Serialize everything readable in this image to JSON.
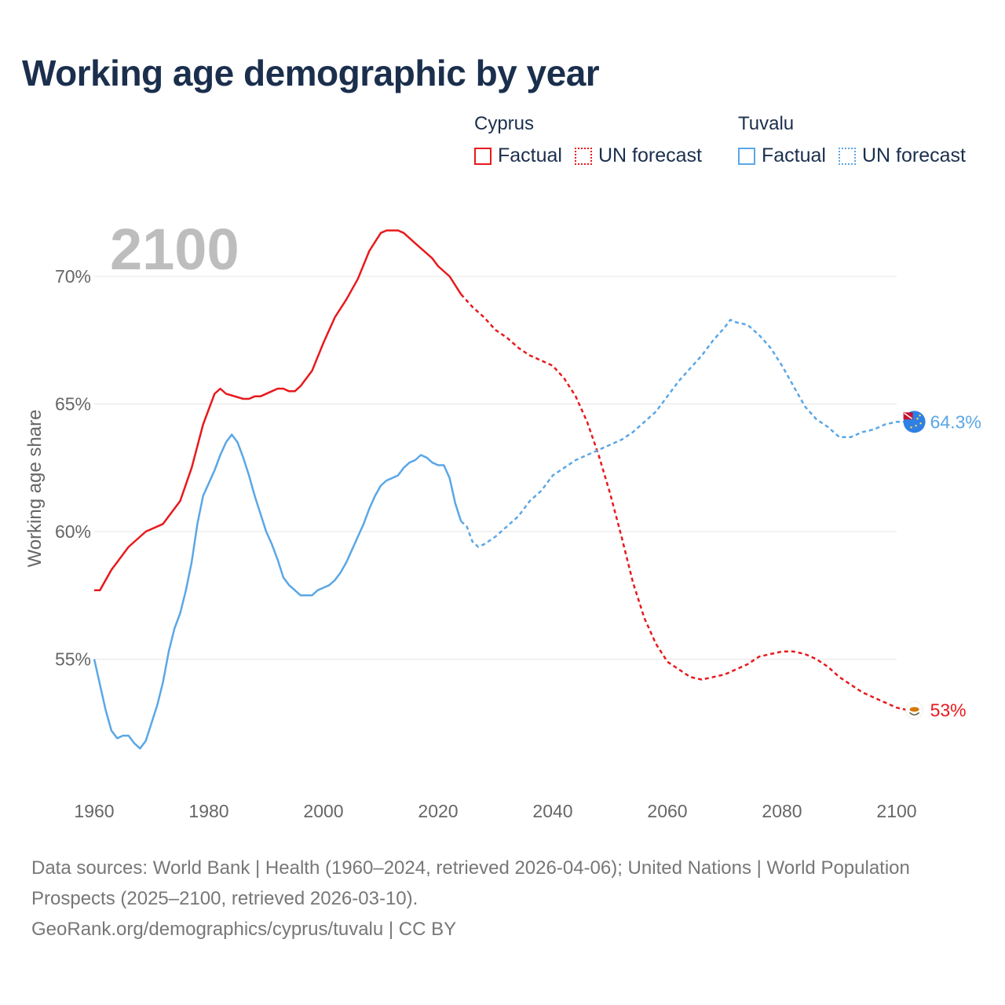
{
  "title": "Working age demographic by year",
  "year_label": "2100",
  "legend": {
    "groups": [
      {
        "name": "Cyprus",
        "factual_label": "Factual",
        "forecast_label": "UN forecast",
        "color": "#e8191c"
      },
      {
        "name": "Tuvalu",
        "factual_label": "Factual",
        "forecast_label": "UN forecast",
        "color": "#5aa7e6"
      }
    ]
  },
  "footer": {
    "sources": "Data sources: World Bank | Health (1960–2024, retrieved 2026-04-06); United Nations | World Population Prospects (2025–2100, retrieved 2026-03-10).",
    "url": "GeoRank.org/demographics/cyprus/tuvalu | CC BY"
  },
  "chart_data": {
    "type": "line",
    "title": "Working age demographic by year",
    "xlabel": "",
    "ylabel": "Working age share",
    "xlim": [
      1960,
      2100
    ],
    "ylim": [
      50,
      72
    ],
    "x_ticks": [
      1960,
      1980,
      2000,
      2020,
      2040,
      2060,
      2080,
      2100
    ],
    "y_ticks": [
      55,
      60,
      65,
      70
    ],
    "y_tick_labels": [
      "55%",
      "60%",
      "65%",
      "70%"
    ],
    "grid": true,
    "factual_end_year": 2024,
    "series": [
      {
        "name": "Cyprus",
        "color": "#e8191c",
        "end_label": "53%",
        "points": [
          [
            1960,
            57.7
          ],
          [
            1961,
            57.7
          ],
          [
            1963,
            58.5
          ],
          [
            1966,
            59.4
          ],
          [
            1969,
            60.0
          ],
          [
            1972,
            60.3
          ],
          [
            1975,
            61.2
          ],
          [
            1977,
            62.5
          ],
          [
            1979,
            64.2
          ],
          [
            1981,
            65.4
          ],
          [
            1982,
            65.6
          ],
          [
            1983,
            65.4
          ],
          [
            1986,
            65.2
          ],
          [
            1987,
            65.2
          ],
          [
            1988,
            65.3
          ],
          [
            1989,
            65.3
          ],
          [
            1991,
            65.5
          ],
          [
            1992,
            65.6
          ],
          [
            1993,
            65.6
          ],
          [
            1994,
            65.5
          ],
          [
            1995,
            65.5
          ],
          [
            1996,
            65.7
          ],
          [
            1998,
            66.3
          ],
          [
            2000,
            67.4
          ],
          [
            2002,
            68.4
          ],
          [
            2004,
            69.1
          ],
          [
            2006,
            69.9
          ],
          [
            2008,
            71.0
          ],
          [
            2010,
            71.7
          ],
          [
            2011,
            71.8
          ],
          [
            2013,
            71.8
          ],
          [
            2014,
            71.7
          ],
          [
            2016,
            71.3
          ],
          [
            2018,
            70.9
          ],
          [
            2019,
            70.7
          ],
          [
            2020,
            70.4
          ],
          [
            2022,
            70.0
          ],
          [
            2024,
            69.3
          ],
          [
            2026,
            68.8
          ],
          [
            2028,
            68.4
          ],
          [
            2030,
            67.9
          ],
          [
            2032,
            67.6
          ],
          [
            2034,
            67.2
          ],
          [
            2036,
            66.9
          ],
          [
            2038,
            66.7
          ],
          [
            2040,
            66.5
          ],
          [
            2042,
            66.0
          ],
          [
            2044,
            65.3
          ],
          [
            2046,
            64.3
          ],
          [
            2048,
            63.0
          ],
          [
            2050,
            61.5
          ],
          [
            2052,
            59.8
          ],
          [
            2054,
            58.0
          ],
          [
            2056,
            56.6
          ],
          [
            2058,
            55.6
          ],
          [
            2060,
            54.9
          ],
          [
            2062,
            54.6
          ],
          [
            2064,
            54.3
          ],
          [
            2066,
            54.2
          ],
          [
            2068,
            54.3
          ],
          [
            2070,
            54.4
          ],
          [
            2072,
            54.6
          ],
          [
            2074,
            54.8
          ],
          [
            2076,
            55.1
          ],
          [
            2078,
            55.2
          ],
          [
            2080,
            55.3
          ],
          [
            2082,
            55.3
          ],
          [
            2084,
            55.2
          ],
          [
            2086,
            55.0
          ],
          [
            2088,
            54.7
          ],
          [
            2090,
            54.3
          ],
          [
            2092,
            54.0
          ],
          [
            2094,
            53.7
          ],
          [
            2096,
            53.5
          ],
          [
            2098,
            53.3
          ],
          [
            2100,
            53.1
          ],
          [
            2102,
            53.0
          ]
        ]
      },
      {
        "name": "Tuvalu",
        "color": "#5aa7e6",
        "end_label": "64.3%",
        "points": [
          [
            1960,
            55.0
          ],
          [
            1961,
            54.0
          ],
          [
            1962,
            53.0
          ],
          [
            1963,
            52.2
          ],
          [
            1964,
            51.9
          ],
          [
            1965,
            52.0
          ],
          [
            1966,
            52.0
          ],
          [
            1967,
            51.7
          ],
          [
            1968,
            51.5
          ],
          [
            1969,
            51.8
          ],
          [
            1970,
            52.5
          ],
          [
            1971,
            53.2
          ],
          [
            1972,
            54.1
          ],
          [
            1973,
            55.3
          ],
          [
            1974,
            56.2
          ],
          [
            1975,
            56.8
          ],
          [
            1976,
            57.7
          ],
          [
            1977,
            58.8
          ],
          [
            1978,
            60.3
          ],
          [
            1979,
            61.4
          ],
          [
            1980,
            61.9
          ],
          [
            1981,
            62.4
          ],
          [
            1982,
            63.0
          ],
          [
            1983,
            63.5
          ],
          [
            1984,
            63.8
          ],
          [
            1985,
            63.5
          ],
          [
            1986,
            62.9
          ],
          [
            1987,
            62.2
          ],
          [
            1988,
            61.4
          ],
          [
            1989,
            60.7
          ],
          [
            1990,
            60.0
          ],
          [
            1991,
            59.5
          ],
          [
            1992,
            58.9
          ],
          [
            1993,
            58.2
          ],
          [
            1994,
            57.9
          ],
          [
            1995,
            57.7
          ],
          [
            1996,
            57.5
          ],
          [
            1997,
            57.5
          ],
          [
            1998,
            57.5
          ],
          [
            1999,
            57.7
          ],
          [
            2000,
            57.8
          ],
          [
            2001,
            57.9
          ],
          [
            2002,
            58.1
          ],
          [
            2003,
            58.4
          ],
          [
            2004,
            58.8
          ],
          [
            2005,
            59.3
          ],
          [
            2006,
            59.8
          ],
          [
            2007,
            60.3
          ],
          [
            2008,
            60.9
          ],
          [
            2009,
            61.4
          ],
          [
            2010,
            61.8
          ],
          [
            2011,
            62.0
          ],
          [
            2012,
            62.1
          ],
          [
            2013,
            62.2
          ],
          [
            2014,
            62.5
          ],
          [
            2015,
            62.7
          ],
          [
            2016,
            62.8
          ],
          [
            2017,
            63.0
          ],
          [
            2018,
            62.9
          ],
          [
            2019,
            62.7
          ],
          [
            2020,
            62.6
          ],
          [
            2021,
            62.6
          ],
          [
            2022,
            62.1
          ],
          [
            2023,
            61.1
          ],
          [
            2024,
            60.4
          ],
          [
            2025,
            60.2
          ],
          [
            2026,
            59.6
          ],
          [
            2027,
            59.4
          ],
          [
            2028,
            59.5
          ],
          [
            2030,
            59.8
          ],
          [
            2032,
            60.2
          ],
          [
            2034,
            60.6
          ],
          [
            2036,
            61.2
          ],
          [
            2038,
            61.6
          ],
          [
            2040,
            62.2
          ],
          [
            2042,
            62.5
          ],
          [
            2044,
            62.8
          ],
          [
            2046,
            63.0
          ],
          [
            2048,
            63.2
          ],
          [
            2050,
            63.4
          ],
          [
            2052,
            63.6
          ],
          [
            2054,
            63.9
          ],
          [
            2056,
            64.3
          ],
          [
            2058,
            64.7
          ],
          [
            2060,
            65.3
          ],
          [
            2062,
            65.9
          ],
          [
            2064,
            66.4
          ],
          [
            2066,
            66.9
          ],
          [
            2068,
            67.5
          ],
          [
            2070,
            68.0
          ],
          [
            2071,
            68.3
          ],
          [
            2072,
            68.2
          ],
          [
            2074,
            68.1
          ],
          [
            2076,
            67.7
          ],
          [
            2078,
            67.2
          ],
          [
            2080,
            66.5
          ],
          [
            2082,
            65.7
          ],
          [
            2084,
            64.9
          ],
          [
            2086,
            64.4
          ],
          [
            2088,
            64.1
          ],
          [
            2090,
            63.7
          ],
          [
            2092,
            63.7
          ],
          [
            2094,
            63.9
          ],
          [
            2096,
            64.0
          ],
          [
            2098,
            64.2
          ],
          [
            2100,
            64.3
          ],
          [
            2102,
            64.3
          ]
        ]
      }
    ]
  }
}
